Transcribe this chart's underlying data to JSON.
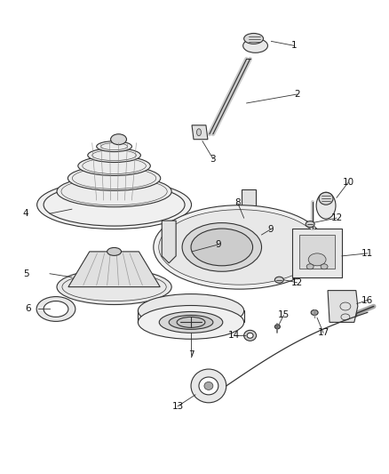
{
  "background_color": "#ffffff",
  "line_color": "#333333",
  "label_color": "#111111",
  "figsize": [
    4.38,
    5.33
  ],
  "dpi": 100,
  "label_fontsize": 7.5,
  "leader_lw": 0.6,
  "part_lw": 0.8
}
